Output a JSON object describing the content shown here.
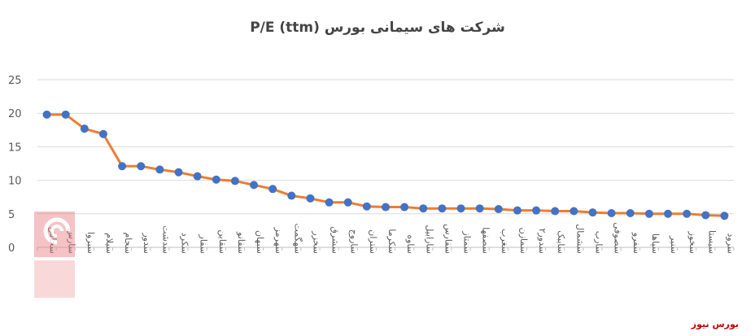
{
  "chart_data": {
    "type": "line",
    "title": "P/E (ttm) شرکت های سیمانی بورس",
    "xlabel": "",
    "ylabel": "",
    "ylim": [
      0,
      25
    ],
    "yticks": [
      "0",
      "5",
      "10",
      "15",
      "20",
      "25"
    ],
    "grid": true,
    "legend": "none",
    "categories": [
      "سخاش",
      "سارس",
      "سبزوا",
      "سیلام",
      "سجام",
      "سدور",
      "سدشت",
      "سکرد",
      "سفار",
      "سقاین",
      "سفانو",
      "سبهان",
      "سهرمز",
      "سهگمت",
      "سخزر",
      "سشرق",
      "ساروج",
      "ستران",
      "سکرما",
      "ساوه",
      "سارابیل",
      "سفارس",
      "سمتاز",
      "سصفها",
      "سغرب",
      "سمازن",
      "سدور۲",
      "سایبک",
      "سشمال",
      "سارب",
      "سصوفی",
      "سفرو",
      "سپاها",
      "سنیر",
      "سخوز",
      "سیستا",
      "سرود"
    ],
    "series": [
      {
        "color": "#ed7d31",
        "marker_color": "#4472c4",
        "values": [
          19.8,
          19.8,
          17.7,
          16.9,
          12.1,
          12.1,
          11.6,
          11.2,
          10.6,
          10.1,
          9.9,
          9.3,
          8.7,
          7.7,
          7.3,
          6.7,
          6.7,
          6.1,
          6.0,
          6.0,
          5.8,
          5.8,
          5.8,
          5.8,
          5.7,
          5.5,
          5.5,
          5.4,
          5.4,
          5.2,
          5.1,
          5.1,
          5.0,
          5.0,
          5.0,
          4.8,
          4.7
        ]
      }
    ]
  },
  "source": "بورس نیوز",
  "colors": {
    "gridline": "#d9d9d9",
    "axis": "#bfbfbf",
    "watermark": "#e8747c"
  },
  "icons": {
    "watermark": "boursenews-logo-icon"
  }
}
